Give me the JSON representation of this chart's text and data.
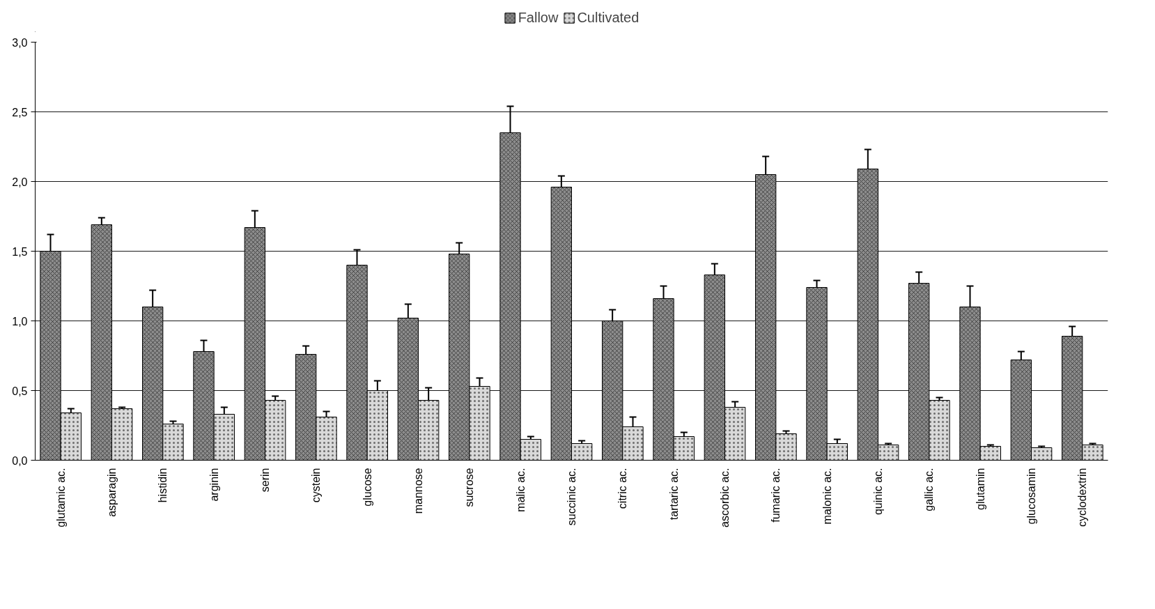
{
  "chart_data": {
    "type": "bar",
    "categories": [
      "glutamic ac.",
      "asparagin",
      "histidin",
      "arginin",
      "serin",
      "cystein",
      "glucose",
      "mannose",
      "sucrose",
      "malic ac.",
      "succinic ac.",
      "citric ac.",
      "tartaric ac.",
      "ascorbic ac.",
      "fumaric ac.",
      "malonic ac.",
      "quinic ac.",
      "gallic ac.",
      "glutamin",
      "glucosamin",
      "cyclodextrin"
    ],
    "series": [
      {
        "name": "Fallow",
        "color": "#8c8c8c",
        "values": [
          1.5,
          1.69,
          1.1,
          0.78,
          1.67,
          0.76,
          1.4,
          1.02,
          1.48,
          2.35,
          1.96,
          1.0,
          1.16,
          1.33,
          2.05,
          1.24,
          2.09,
          1.27,
          1.1,
          0.72,
          0.89
        ],
        "errors": [
          [
            1.5,
            1.62
          ],
          [
            1.69,
            1.74
          ],
          [
            1.1,
            1.22
          ],
          [
            0.78,
            0.86
          ],
          [
            1.67,
            1.79
          ],
          [
            0.76,
            0.82
          ],
          [
            1.4,
            1.51
          ],
          [
            1.02,
            1.12
          ],
          [
            1.48,
            1.56
          ],
          [
            2.35,
            2.54
          ],
          [
            1.96,
            2.04
          ],
          [
            1.0,
            1.08
          ],
          [
            1.16,
            1.25
          ],
          [
            1.33,
            1.41
          ],
          [
            2.05,
            2.18
          ],
          [
            1.24,
            1.29
          ],
          [
            2.09,
            2.23
          ],
          [
            1.27,
            1.35
          ],
          [
            1.1,
            1.25
          ],
          [
            0.72,
            0.78
          ],
          [
            0.89,
            0.96
          ]
        ]
      },
      {
        "name": "Cultivated",
        "color": "#d9d9d9",
        "values": [
          0.34,
          0.37,
          0.26,
          0.33,
          0.43,
          0.31,
          0.5,
          0.43,
          0.53,
          0.15,
          0.12,
          0.24,
          0.17,
          0.38,
          0.19,
          0.12,
          0.11,
          0.43,
          0.1,
          0.09,
          0.11
        ],
        "errors": [
          [
            0.34,
            0.37
          ],
          [
            0.37,
            0.38
          ],
          [
            0.26,
            0.28
          ],
          [
            0.33,
            0.38
          ],
          [
            0.43,
            0.46
          ],
          [
            0.31,
            0.35
          ],
          [
            0.5,
            0.57
          ],
          [
            0.43,
            0.52
          ],
          [
            0.53,
            0.59
          ],
          [
            0.15,
            0.17
          ],
          [
            0.12,
            0.14
          ],
          [
            0.24,
            0.31
          ],
          [
            0.17,
            0.2
          ],
          [
            0.38,
            0.42
          ],
          [
            0.19,
            0.21
          ],
          [
            0.12,
            0.15
          ],
          [
            0.11,
            0.12
          ],
          [
            0.43,
            0.45
          ],
          [
            0.1,
            0.11
          ],
          [
            0.09,
            0.1
          ],
          [
            0.11,
            0.12
          ]
        ]
      }
    ],
    "ylim": [
      0,
      3
    ],
    "yticks": [
      {
        "value": 0,
        "label": "0,0"
      },
      {
        "value": 0.5,
        "label": "0,5"
      },
      {
        "value": 1,
        "label": "1,0"
      },
      {
        "value": 1.5,
        "label": "1,5"
      },
      {
        "value": 2,
        "label": "2,0"
      },
      {
        "value": 2.5,
        "label": "2,5"
      },
      {
        "value": 3,
        "label": "3,0"
      }
    ],
    "grid": "y",
    "legend": "top"
  }
}
